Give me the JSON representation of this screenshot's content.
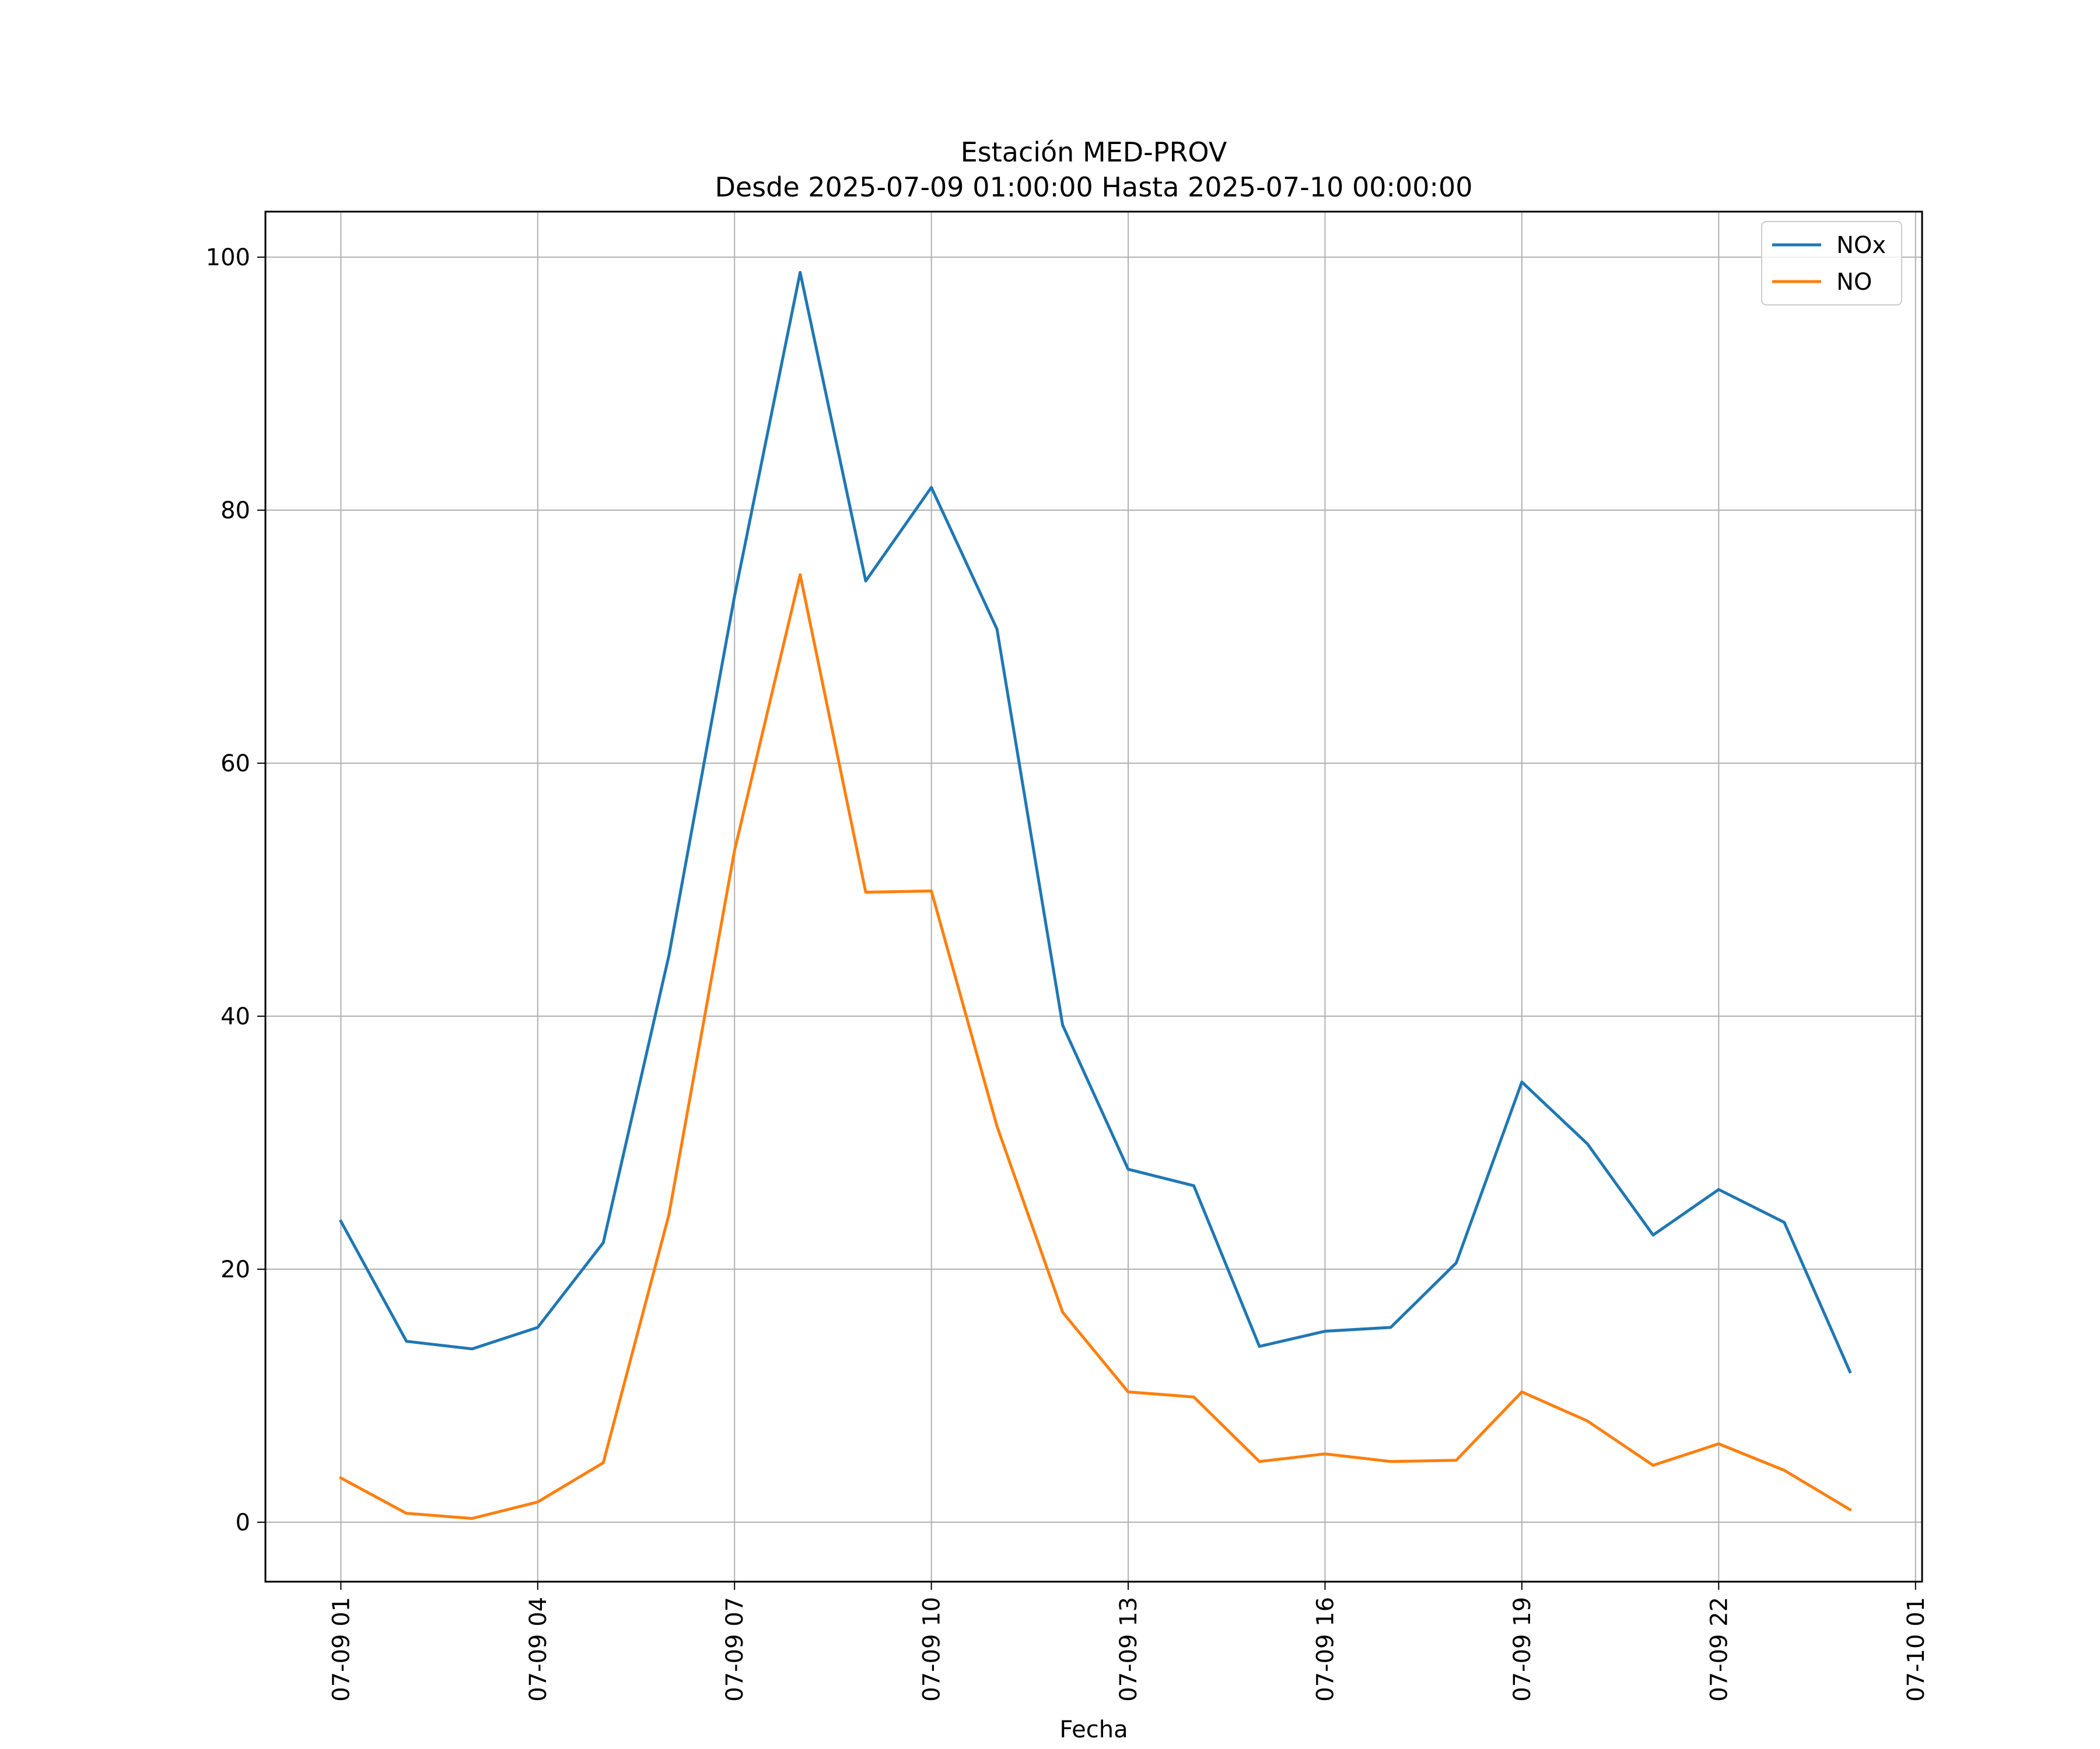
{
  "chart_data": {
    "type": "line",
    "title": "Estación MED-PROV",
    "subtitle": "Desde 2025-07-09 01:00:00 Hasta 2025-07-10 00:00:00",
    "xlabel": "Fecha",
    "ylabel": "",
    "x_hours": [
      1,
      2,
      3,
      4,
      5,
      6,
      7,
      8,
      9,
      10,
      11,
      12,
      13,
      14,
      15,
      16,
      17,
      18,
      19,
      20,
      21,
      22,
      23,
      24
    ],
    "xlim": [
      -0.15,
      25.1
    ],
    "ylim": [
      -4.7,
      103.6
    ],
    "x_ticks": [
      {
        "hour": 1,
        "label": "07-09 01"
      },
      {
        "hour": 4,
        "label": "07-09 04"
      },
      {
        "hour": 7,
        "label": "07-09 07"
      },
      {
        "hour": 10,
        "label": "07-09 10"
      },
      {
        "hour": 13,
        "label": "07-09 13"
      },
      {
        "hour": 16,
        "label": "07-09 16"
      },
      {
        "hour": 19,
        "label": "07-09 19"
      },
      {
        "hour": 22,
        "label": "07-09 22"
      },
      {
        "hour": 25,
        "label": "07-10 01"
      }
    ],
    "y_ticks": [
      {
        "value": 0,
        "label": "0"
      },
      {
        "value": 20,
        "label": "20"
      },
      {
        "value": 40,
        "label": "40"
      },
      {
        "value": 60,
        "label": "60"
      },
      {
        "value": 80,
        "label": "80"
      },
      {
        "value": 100,
        "label": "100"
      }
    ],
    "grid": true,
    "legend_position": "top-right",
    "series": [
      {
        "name": "NOx",
        "color": "#1f77b4",
        "values": [
          23.8,
          14.3,
          13.7,
          15.4,
          22.1,
          44.8,
          73.2,
          98.8,
          74.4,
          81.8,
          70.6,
          39.3,
          27.9,
          26.6,
          13.9,
          15.1,
          15.4,
          20.5,
          34.8,
          29.9,
          22.7,
          26.3,
          23.7,
          11.9
        ]
      },
      {
        "name": "NO",
        "color": "#ff7f0e",
        "values": [
          3.5,
          0.7,
          0.3,
          1.6,
          4.7,
          24.3,
          53.1,
          74.9,
          49.8,
          49.9,
          31.3,
          16.6,
          10.3,
          9.9,
          4.8,
          5.4,
          4.8,
          4.9,
          10.3,
          8.0,
          4.5,
          6.2,
          4.1,
          1.0
        ]
      }
    ]
  }
}
